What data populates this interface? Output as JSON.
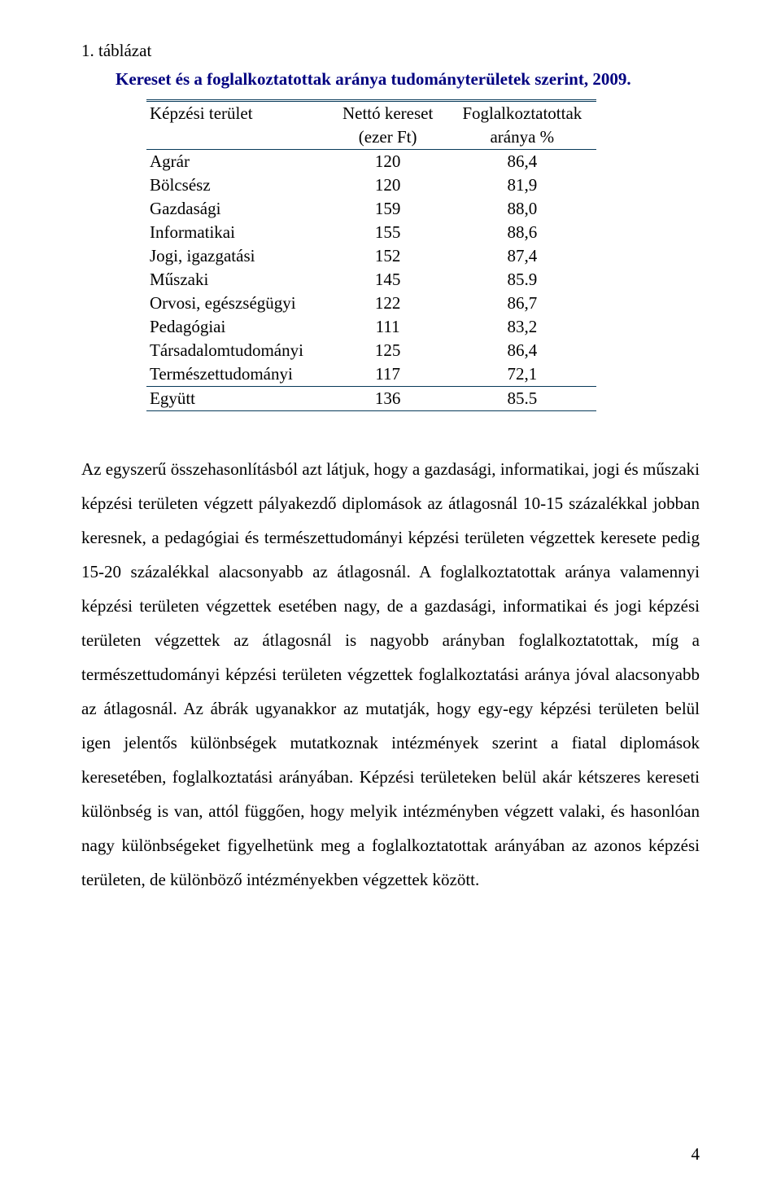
{
  "list_number": "1.  táblázat",
  "table": {
    "title": "Kereset és a foglalkoztatottak aránya tudományterületek szerint, 2009.",
    "title_color": "#000080",
    "border_color": "#083a5a",
    "columns": [
      {
        "label_line1": "Képzési terület",
        "label_line2": ""
      },
      {
        "label_line1": "Nettó kereset",
        "label_line2": "(ezer Ft)"
      },
      {
        "label_line1": "Foglalkoztatottak",
        "label_line2": "aránya %"
      }
    ],
    "rows": [
      {
        "label": "Agrár",
        "v1": "120",
        "v2": "86,4"
      },
      {
        "label": "Bölcsész",
        "v1": "120",
        "v2": "81,9"
      },
      {
        "label": "Gazdasági",
        "v1": "159",
        "v2": "88,0"
      },
      {
        "label": "Informatikai",
        "v1": "155",
        "v2": "88,6"
      },
      {
        "label": "Jogi, igazgatási",
        "v1": "152",
        "v2": "87,4"
      },
      {
        "label": "Műszaki",
        "v1": "145",
        "v2": "85.9"
      },
      {
        "label": "Orvosi, egészségügyi",
        "v1": "122",
        "v2": "86,7"
      },
      {
        "label": "Pedagógiai",
        "v1": "111",
        "v2": "83,2"
      },
      {
        "label": "Társadalomtudományi",
        "v1": "125",
        "v2": "86,4"
      },
      {
        "label": "Természettudományi",
        "v1": "117",
        "v2": "72,1"
      }
    ],
    "total_row": {
      "label": "Együtt",
      "v1": "136",
      "v2": "85.5"
    }
  },
  "body": "Az egyszerű összehasonlításból azt látjuk, hogy a gazdasági, informatikai, jogi és műszaki képzési területen végzett pályakezdő diplomások az átlagosnál 10-15 százalékkal jobban keresnek, a pedagógiai és természettudományi képzési területen végzettek keresete pedig 15-20 százalékkal alacsonyabb az átlagosnál. A foglalkoztatottak aránya valamennyi képzési területen végzettek esetében nagy, de a gazdasági,  informatikai és jogi képzési területen végzettek az átlagosnál is nagyobb arányban foglalkoztatottak, míg a természettudományi képzési területen végzettek foglalkoztatási aránya  jóval alacsonyabb az átlagosnál. Az ábrák ugyanakkor az mutatják, hogy egy-egy képzési területen belül igen jelentős különbségek mutatkoznak intézmények szerint a fiatal diplomások keresetében, foglalkoztatási arányában. Képzési területeken belül akár kétszeres kereseti különbség is van, attól függően, hogy melyik intézményben végzett valaki, és hasonlóan nagy különbségeket figyelhetünk meg a foglalkoztatottak arányában az azonos képzési területen, de különböző intézményekben végzettek között.",
  "page_number": "4"
}
